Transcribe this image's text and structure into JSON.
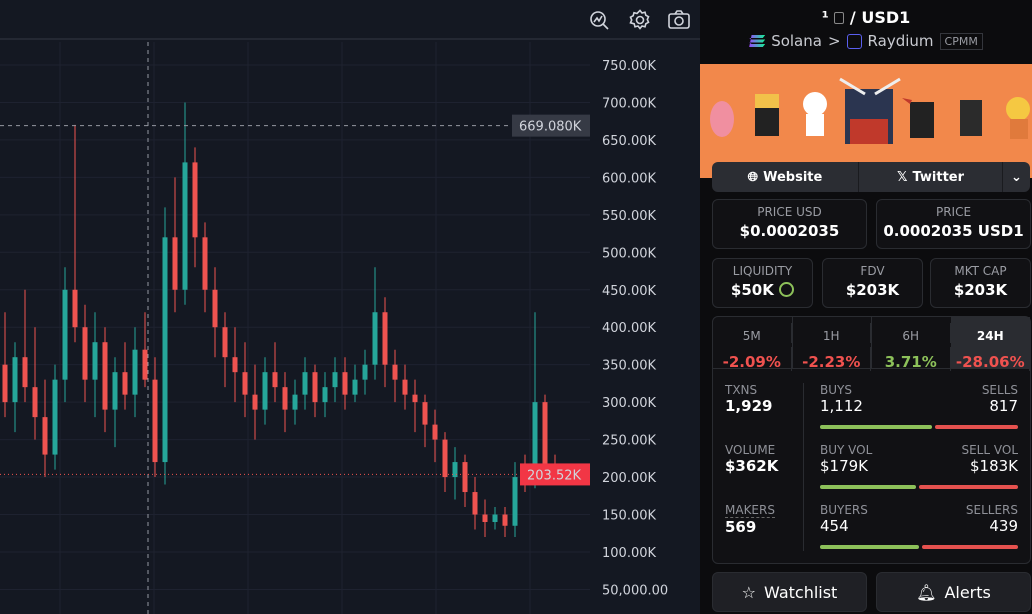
{
  "toolbar": {
    "icons": [
      "indicator-icon",
      "settings-gear-icon",
      "camera-screenshot-icon"
    ]
  },
  "chart": {
    "y_ticks": [
      "750.00K",
      "700.00K",
      "650.00K",
      "600.00K",
      "550.00K",
      "500.00K",
      "450.00K",
      "400.00K",
      "350.00K",
      "300.00K",
      "250.00K",
      "200.00K",
      "150.00K",
      "100.00K",
      "50,000.00"
    ],
    "y_tick_values": [
      750,
      700,
      650,
      600,
      550,
      500,
      450,
      400,
      350,
      300,
      250,
      200,
      150,
      100,
      50
    ],
    "crosshair_label": "669.080K",
    "crosshair_value": 669.08,
    "price_label": "203.52K",
    "price_value": 203.52,
    "up_color": "#26a69a",
    "down_color": "#ef5350",
    "candles": [
      [
        350,
        420,
        280,
        300
      ],
      [
        300,
        380,
        260,
        360
      ],
      [
        360,
        450,
        300,
        320
      ],
      [
        320,
        400,
        250,
        280
      ],
      [
        280,
        330,
        200,
        230
      ],
      [
        230,
        350,
        210,
        330
      ],
      [
        330,
        480,
        300,
        450
      ],
      [
        450,
        670,
        380,
        400
      ],
      [
        400,
        430,
        300,
        330
      ],
      [
        330,
        420,
        280,
        380
      ],
      [
        380,
        400,
        260,
        290
      ],
      [
        290,
        360,
        240,
        340
      ],
      [
        340,
        380,
        290,
        310
      ],
      [
        310,
        400,
        280,
        370
      ],
      [
        370,
        420,
        320,
        330
      ],
      [
        330,
        360,
        200,
        220
      ],
      [
        220,
        560,
        190,
        520
      ],
      [
        520,
        600,
        420,
        450
      ],
      [
        450,
        700,
        430,
        620
      ],
      [
        620,
        640,
        480,
        520
      ],
      [
        520,
        540,
        420,
        450
      ],
      [
        450,
        480,
        360,
        400
      ],
      [
        400,
        420,
        320,
        360
      ],
      [
        360,
        400,
        300,
        340
      ],
      [
        340,
        380,
        280,
        310
      ],
      [
        310,
        350,
        250,
        290
      ],
      [
        290,
        360,
        270,
        340
      ],
      [
        340,
        380,
        300,
        320
      ],
      [
        320,
        340,
        260,
        290
      ],
      [
        290,
        330,
        270,
        310
      ],
      [
        310,
        360,
        290,
        340
      ],
      [
        340,
        350,
        280,
        300
      ],
      [
        300,
        340,
        280,
        320
      ],
      [
        320,
        360,
        300,
        340
      ],
      [
        340,
        360,
        290,
        310
      ],
      [
        310,
        350,
        300,
        330
      ],
      [
        330,
        370,
        310,
        350
      ],
      [
        350,
        480,
        330,
        420
      ],
      [
        420,
        440,
        320,
        350
      ],
      [
        350,
        370,
        300,
        330
      ],
      [
        330,
        350,
        290,
        310
      ],
      [
        310,
        330,
        260,
        300
      ],
      [
        300,
        310,
        240,
        270
      ],
      [
        270,
        290,
        220,
        250
      ],
      [
        250,
        260,
        180,
        200
      ],
      [
        200,
        240,
        170,
        220
      ],
      [
        220,
        230,
        160,
        180
      ],
      [
        180,
        200,
        130,
        150
      ],
      [
        150,
        170,
        120,
        140
      ],
      [
        140,
        160,
        130,
        150
      ],
      [
        150,
        160,
        120,
        135
      ],
      [
        135,
        220,
        120,
        200
      ],
      [
        200,
        230,
        180,
        190
      ],
      [
        190,
        420,
        185,
        300
      ],
      [
        300,
        310,
        200,
        210
      ],
      [
        210,
        230,
        200,
        203.52
      ]
    ]
  },
  "pair": {
    "base": "¹",
    "quote": "/ USD1",
    "chain": "Solana",
    "sep": ">",
    "dex": "Raydium",
    "pool_type": "CPMM"
  },
  "links": {
    "website": "Website",
    "twitter": "Twitter"
  },
  "prices": {
    "usd_label": "PRICE USD",
    "usd_value": "$0.0002035",
    "native_label": "PRICE",
    "native_value": "0.0002035 USD1"
  },
  "stats": {
    "liq_label": "LIQUIDITY",
    "liq_value": "$50K",
    "fdv_label": "FDV",
    "fdv_value": "$203K",
    "mcap_label": "MKT CAP",
    "mcap_value": "$203K"
  },
  "timeframes": [
    {
      "label": "5M",
      "change": "-2.09%",
      "color": "#f0524f"
    },
    {
      "label": "1H",
      "change": "-2.23%",
      "color": "#f0524f"
    },
    {
      "label": "6H",
      "change": "3.71%",
      "color": "#8dc15a"
    },
    {
      "label": "24H",
      "change": "-28.06%",
      "color": "#f0524f"
    }
  ],
  "txns": {
    "label": "TXNS",
    "value": "1,929",
    "buys_label": "BUYS",
    "buys": "1,112",
    "sells_label": "SELLS",
    "sells": "817",
    "buy_frac": 0.576
  },
  "volume": {
    "label": "VOLUME",
    "value": "$362K",
    "buy_label": "BUY VOL",
    "buy": "$179K",
    "sell_label": "SELL VOL",
    "sell": "$183K",
    "buy_frac": 0.494
  },
  "makers": {
    "label": "MAKERS",
    "value": "569",
    "buyers_label": "BUYERS",
    "buyers": "454",
    "sellers_label": "SELLERS",
    "sellers": "439",
    "buy_frac": 0.508
  },
  "actions": {
    "watchlist": "Watchlist",
    "alerts": "Alerts"
  },
  "colors": {
    "green": "#8dc15a",
    "red": "#e5524f",
    "banner": "#f2884b"
  }
}
